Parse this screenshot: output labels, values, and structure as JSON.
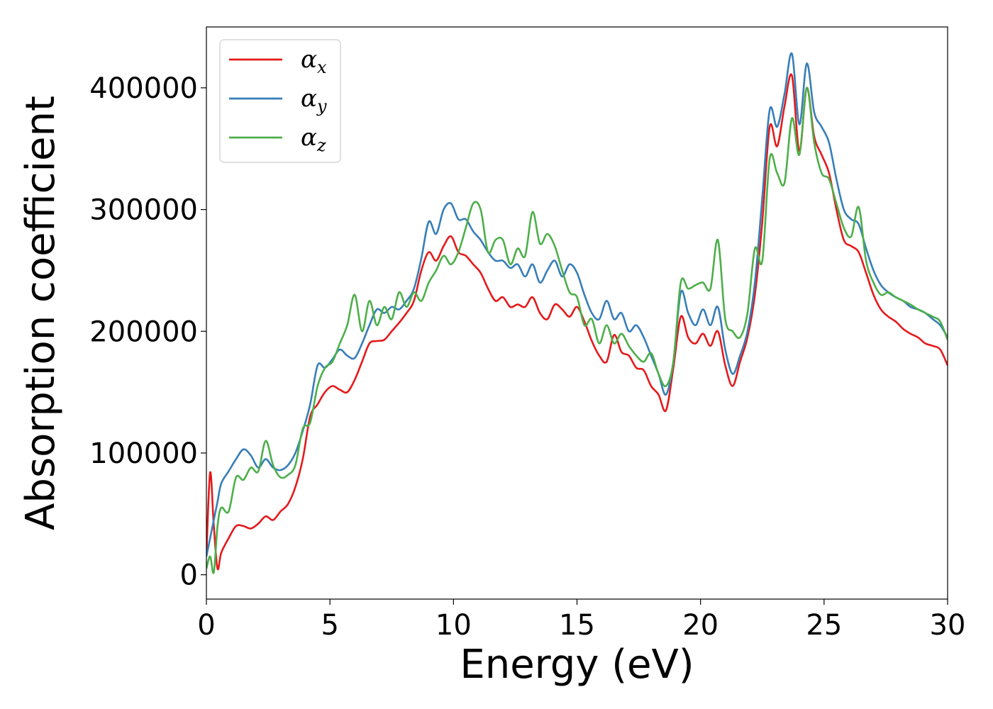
{
  "chart_data": {
    "type": "line",
    "title": "",
    "xlabel": "Energy (eV)",
    "ylabel": "Absorption coefficient",
    "xlim": [
      0,
      30
    ],
    "ylim": [
      -20000,
      450000
    ],
    "xticks": [
      0,
      5,
      10,
      15,
      20,
      25,
      30
    ],
    "xtick_labels": [
      "0",
      "5",
      "10",
      "15",
      "20",
      "25",
      "30"
    ],
    "yticks": [
      0,
      100000,
      200000,
      300000,
      400000
    ],
    "ytick_labels": [
      "0",
      "100000",
      "200000",
      "300000",
      "400000"
    ],
    "grid": false,
    "legend_position": "top-left",
    "series": [
      {
        "name": "α_x",
        "legend_base": "α",
        "legend_sub": "x",
        "color": "#e41a1c",
        "x": [
          0,
          0.15,
          0.3,
          0.45,
          0.6,
          0.9,
          1.2,
          1.5,
          1.8,
          2.1,
          2.4,
          2.7,
          3.0,
          3.3,
          3.6,
          3.9,
          4.2,
          4.5,
          4.8,
          5.1,
          5.4,
          5.7,
          6.0,
          6.3,
          6.6,
          6.9,
          7.2,
          7.5,
          7.8,
          8.1,
          8.4,
          8.7,
          9.0,
          9.3,
          9.6,
          9.9,
          10.2,
          10.5,
          10.8,
          11.1,
          11.4,
          11.7,
          12.0,
          12.3,
          12.6,
          12.9,
          13.2,
          13.5,
          13.8,
          14.1,
          14.4,
          14.7,
          15.0,
          15.3,
          15.6,
          15.9,
          16.2,
          16.5,
          16.8,
          17.1,
          17.4,
          17.7,
          18.0,
          18.3,
          18.6,
          18.9,
          19.2,
          19.5,
          19.8,
          20.1,
          20.4,
          20.7,
          21.0,
          21.3,
          21.6,
          21.9,
          22.2,
          22.5,
          22.8,
          23.1,
          23.4,
          23.7,
          24.0,
          24.3,
          24.6,
          24.9,
          25.2,
          25.5,
          25.8,
          26.1,
          26.4,
          26.7,
          27.0,
          27.3,
          27.6,
          27.9,
          28.2,
          28.5,
          28.8,
          29.1,
          29.4,
          29.7,
          30.0
        ],
        "y": [
          15000,
          84000,
          40000,
          5000,
          18000,
          30000,
          40000,
          40000,
          38000,
          42000,
          48000,
          45000,
          52000,
          58000,
          72000,
          95000,
          130000,
          140000,
          150000,
          155000,
          152000,
          150000,
          160000,
          175000,
          190000,
          192000,
          193000,
          200000,
          207000,
          215000,
          225000,
          250000,
          265000,
          258000,
          270000,
          278000,
          265000,
          262000,
          255000,
          248000,
          235000,
          225000,
          228000,
          220000,
          222000,
          220000,
          228000,
          215000,
          210000,
          222000,
          218000,
          212000,
          220000,
          208000,
          192000,
          180000,
          175000,
          197000,
          183000,
          180000,
          170000,
          168000,
          155000,
          148000,
          135000,
          170000,
          212000,
          195000,
          190000,
          198000,
          188000,
          200000,
          172000,
          155000,
          175000,
          195000,
          230000,
          290000,
          368000,
          352000,
          385000,
          410000,
          348000,
          400000,
          360000,
          345000,
          330000,
          300000,
          275000,
          270000,
          265000,
          248000,
          230000,
          218000,
          212000,
          208000,
          202000,
          198000,
          195000,
          190000,
          188000,
          185000,
          172000
        ]
      },
      {
        "name": "α_y",
        "legend_base": "α",
        "legend_sub": "y",
        "color": "#377eb8",
        "x": [
          0,
          0.15,
          0.3,
          0.45,
          0.6,
          0.9,
          1.2,
          1.5,
          1.8,
          2.1,
          2.4,
          2.7,
          3.0,
          3.3,
          3.6,
          3.9,
          4.2,
          4.5,
          4.8,
          5.1,
          5.4,
          5.7,
          6.0,
          6.3,
          6.6,
          6.9,
          7.2,
          7.5,
          7.8,
          8.1,
          8.4,
          8.7,
          9.0,
          9.3,
          9.6,
          9.9,
          10.2,
          10.5,
          10.8,
          11.1,
          11.4,
          11.7,
          12.0,
          12.3,
          12.6,
          12.9,
          13.2,
          13.5,
          13.8,
          14.1,
          14.4,
          14.7,
          15.0,
          15.3,
          15.6,
          15.9,
          16.2,
          16.5,
          16.8,
          17.1,
          17.4,
          17.7,
          18.0,
          18.3,
          18.6,
          18.9,
          19.2,
          19.5,
          19.8,
          20.1,
          20.4,
          20.7,
          21.0,
          21.3,
          21.6,
          21.9,
          22.2,
          22.5,
          22.8,
          23.1,
          23.4,
          23.7,
          24.0,
          24.3,
          24.6,
          24.9,
          25.2,
          25.5,
          25.8,
          26.1,
          26.4,
          26.7,
          27.0,
          27.3,
          27.6,
          27.9,
          28.2,
          28.5,
          28.8,
          29.1,
          29.4,
          29.7,
          30.0
        ],
        "y": [
          15000,
          30000,
          45000,
          60000,
          75000,
          85000,
          95000,
          103000,
          98000,
          88000,
          95000,
          88000,
          86000,
          90000,
          100000,
          118000,
          140000,
          172000,
          170000,
          177000,
          185000,
          180000,
          178000,
          190000,
          205000,
          218000,
          215000,
          220000,
          218000,
          225000,
          235000,
          260000,
          290000,
          280000,
          300000,
          305000,
          292000,
          292000,
          282000,
          275000,
          265000,
          258000,
          258000,
          252000,
          255000,
          245000,
          255000,
          240000,
          250000,
          258000,
          245000,
          255000,
          248000,
          230000,
          215000,
          210000,
          225000,
          210000,
          215000,
          200000,
          205000,
          195000,
          180000,
          165000,
          148000,
          175000,
          232000,
          215000,
          205000,
          218000,
          205000,
          220000,
          185000,
          165000,
          180000,
          200000,
          240000,
          310000,
          382000,
          368000,
          395000,
          428000,
          370000,
          420000,
          380000,
          368000,
          355000,
          325000,
          300000,
          292000,
          288000,
          268000,
          250000,
          238000,
          232000,
          228000,
          225000,
          220000,
          218000,
          215000,
          210000,
          205000,
          195000
        ]
      },
      {
        "name": "α_z",
        "legend_base": "α",
        "legend_sub": "z",
        "color": "#4daf4a",
        "x": [
          0,
          0.15,
          0.3,
          0.45,
          0.6,
          0.9,
          1.2,
          1.5,
          1.8,
          2.1,
          2.4,
          2.7,
          3.0,
          3.3,
          3.6,
          3.9,
          4.2,
          4.5,
          4.8,
          5.1,
          5.4,
          5.7,
          6.0,
          6.3,
          6.6,
          6.9,
          7.2,
          7.5,
          7.8,
          8.1,
          8.4,
          8.7,
          9.0,
          9.3,
          9.6,
          9.9,
          10.2,
          10.5,
          10.8,
          11.1,
          11.4,
          11.7,
          12.0,
          12.3,
          12.6,
          12.9,
          13.2,
          13.5,
          13.8,
          14.1,
          14.4,
          14.7,
          15.0,
          15.3,
          15.6,
          15.9,
          16.2,
          16.5,
          16.8,
          17.1,
          17.4,
          17.7,
          18.0,
          18.3,
          18.6,
          18.9,
          19.2,
          19.5,
          19.8,
          20.1,
          20.4,
          20.7,
          21.0,
          21.3,
          21.6,
          21.9,
          22.2,
          22.5,
          22.8,
          23.1,
          23.4,
          23.7,
          24.0,
          24.3,
          24.6,
          24.9,
          25.2,
          25.5,
          25.8,
          26.1,
          26.4,
          26.7,
          27.0,
          27.3,
          27.6,
          27.9,
          28.2,
          28.5,
          28.8,
          29.1,
          29.4,
          29.7,
          30.0
        ],
        "y": [
          5000,
          15000,
          2000,
          40000,
          55000,
          52000,
          80000,
          78000,
          88000,
          85000,
          110000,
          90000,
          80000,
          82000,
          90000,
          120000,
          125000,
          155000,
          170000,
          175000,
          190000,
          205000,
          230000,
          200000,
          225000,
          205000,
          220000,
          210000,
          232000,
          220000,
          232000,
          225000,
          240000,
          250000,
          262000,
          255000,
          265000,
          285000,
          305000,
          300000,
          265000,
          275000,
          275000,
          255000,
          268000,
          262000,
          298000,
          272000,
          280000,
          270000,
          250000,
          232000,
          228000,
          205000,
          210000,
          190000,
          205000,
          190000,
          198000,
          188000,
          180000,
          175000,
          182000,
          165000,
          155000,
          175000,
          240000,
          235000,
          238000,
          240000,
          235000,
          275000,
          210000,
          200000,
          195000,
          215000,
          268000,
          258000,
          342000,
          330000,
          322000,
          375000,
          345000,
          400000,
          355000,
          330000,
          325000,
          305000,
          285000,
          278000,
          302000,
          258000,
          240000,
          230000,
          232000,
          228000,
          225000,
          222000,
          218000,
          215000,
          212000,
          208000,
          193000
        ]
      }
    ]
  }
}
